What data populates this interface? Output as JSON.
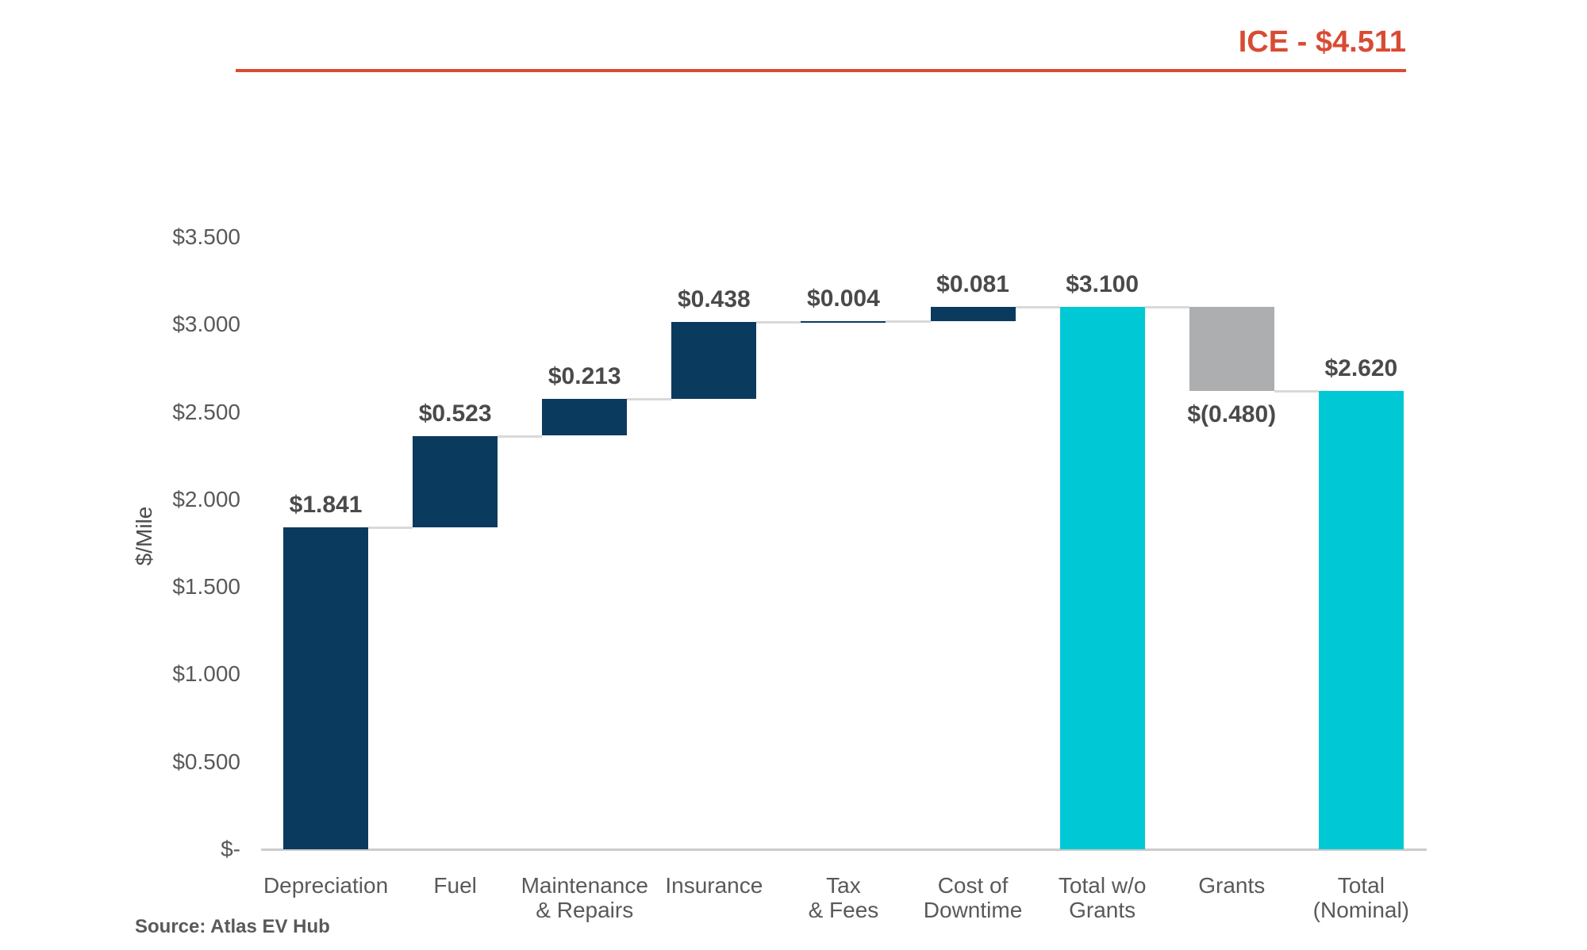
{
  "chart_data": {
    "type": "bar",
    "subtype": "waterfall",
    "title": "ICE - $4.511",
    "benchmark": {
      "label": "ICE",
      "value_display": "$4.511",
      "value": 4.511
    },
    "xlabel": "",
    "ylabel": "$/Mile",
    "ylim": [
      0,
      3.5
    ],
    "grid": "off",
    "legend": "none",
    "y_axis": {
      "ticks": [
        {
          "label": "$3.500",
          "value": 3.5
        },
        {
          "label": "$3.000",
          "value": 3.0
        },
        {
          "label": "$2.500",
          "value": 2.5
        },
        {
          "label": "$2.000",
          "value": 2.0
        },
        {
          "label": "$1.500",
          "value": 1.5
        },
        {
          "label": "$1.000",
          "value": 1.0
        },
        {
          "label": "$0.500",
          "value": 0.5
        },
        {
          "label": "$-",
          "value": 0
        }
      ]
    },
    "categories": [
      "Depreciation",
      "Fuel",
      "Maintenance & Repairs",
      "Insurance",
      "Tax & Fees",
      "Cost of Downtime",
      "Total w/o Grants",
      "Grants",
      "Total (Nominal)"
    ],
    "items": [
      {
        "category_lines": [
          "Depreciation"
        ],
        "display": "$1.841",
        "value": 1.841,
        "base": 0,
        "top": 1.841,
        "kind": "component",
        "label_position": "above",
        "link_after": 1.841
      },
      {
        "category_lines": [
          "Fuel"
        ],
        "display": "$0.523",
        "value": 0.523,
        "base": 1.841,
        "top": 2.364,
        "kind": "component",
        "label_position": "above",
        "link_after": 2.364
      },
      {
        "category_lines": [
          "Maintenance",
          "& Repairs"
        ],
        "display": "$0.213",
        "value": 0.213,
        "base": 2.364,
        "top": 2.577,
        "kind": "component",
        "label_position": "above",
        "link_after": 2.577
      },
      {
        "category_lines": [
          "Insurance"
        ],
        "display": "$0.438",
        "value": 0.438,
        "base": 2.577,
        "top": 3.015,
        "kind": "component",
        "label_position": "above",
        "link_after": 3.015
      },
      {
        "category_lines": [
          "Tax",
          "& Fees"
        ],
        "display": "$0.004",
        "value": 0.004,
        "base": 3.015,
        "top": 3.019,
        "kind": "component",
        "label_position": "above",
        "link_after": 3.019
      },
      {
        "category_lines": [
          "Cost of",
          "Downtime"
        ],
        "display": "$0.081",
        "value": 0.081,
        "base": 3.019,
        "top": 3.1,
        "kind": "component",
        "label_position": "above",
        "link_after": 3.1
      },
      {
        "category_lines": [
          "Total w/o",
          "Grants"
        ],
        "display": "$3.100",
        "value": 3.1,
        "base": 0,
        "top": 3.1,
        "kind": "total",
        "label_position": "above",
        "link_after": 3.1
      },
      {
        "category_lines": [
          "Grants"
        ],
        "display": "$(0.480)",
        "value": -0.48,
        "base": 2.62,
        "top": 3.1,
        "kind": "negative",
        "label_position": "below",
        "link_after": 2.62
      },
      {
        "category_lines": [
          "Total",
          "(Nominal)"
        ],
        "display": "$2.620",
        "value": 2.62,
        "base": 0,
        "top": 2.62,
        "kind": "total",
        "label_position": "above",
        "link_after": null
      }
    ],
    "colors": {
      "accent": "#D84B33",
      "component": "#0B3A5F",
      "total": "#00C8D4",
      "negative": "#ACAEAF",
      "connector": "#D9D9D9",
      "axis_line": "#CCCCCC",
      "text_muted": "#595959"
    }
  },
  "footer": {
    "source": "Source: Atlas EV Hub"
  }
}
